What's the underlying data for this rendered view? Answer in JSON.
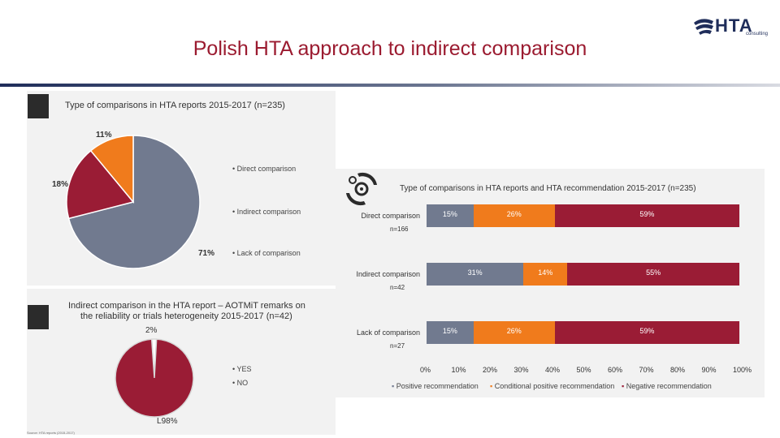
{
  "title": "Polish HTA approach to indirect comparison",
  "logo": {
    "text": "HTA",
    "sub": "consulting"
  },
  "source_note": "Source: HTA reports (2015-2017)",
  "colors": {
    "gray": "#717a8f",
    "orange": "#f07b1c",
    "red": "#9a1c35",
    "title": "#9b1b30"
  },
  "chart_data": [
    {
      "type": "pie",
      "title": "Type of comparisons in HTA reports 2015-2017 (n=235)",
      "labels": [
        "Direct comparison",
        "Indirect comparison",
        "Lack of comparison"
      ],
      "values": [
        71,
        18,
        11
      ],
      "value_labels": [
        "71%",
        "18%",
        "11%"
      ],
      "legend_items": [
        "Direct comparison",
        "Indirect comparison",
        "Lack of comparison"
      ]
    },
    {
      "type": "pie",
      "title": "Indirect comparison in the HTA report – AOTMiT remarks on the reliability or trials heterogeneity 2015-2017 (n=42)",
      "title_line1": "Indirect comparison in the HTA report – AOTMiT remarks on",
      "title_line2": "the reliability or trials heterogeneity 2015-2017 (n=42)",
      "labels": [
        "YES",
        "NO"
      ],
      "values": [
        2,
        98
      ],
      "value_labels": [
        "2%",
        "98%"
      ],
      "legend_items": [
        "YES",
        "NO"
      ]
    },
    {
      "type": "bar",
      "orientation": "horizontal",
      "stacked": true,
      "title": "Type of comparisons in HTA reports and HTA recommendation 2015-2017 (n=235)",
      "categories": [
        "Direct comparison",
        "Indirect comparison",
        "Lack of comparison"
      ],
      "n_labels": [
        "n=166",
        "n=42",
        "n=27"
      ],
      "series": [
        {
          "name": "Positive recommendation",
          "values": [
            15,
            31,
            15
          ],
          "labels": [
            "15%",
            "31%",
            "15%"
          ]
        },
        {
          "name": "Conditional positive recommendation",
          "values": [
            26,
            14,
            26
          ],
          "labels": [
            "26%",
            "14%",
            "26%"
          ]
        },
        {
          "name": "Negative recommendation",
          "values": [
            59,
            55,
            59
          ],
          "labels": [
            "59%",
            "55%",
            "59%"
          ]
        }
      ],
      "xlim": [
        0,
        100
      ],
      "x_ticks": [
        "0%",
        "10%",
        "20%",
        "30%",
        "40%",
        "50%",
        "60%",
        "70%",
        "80%",
        "90%",
        "100%"
      ]
    }
  ]
}
